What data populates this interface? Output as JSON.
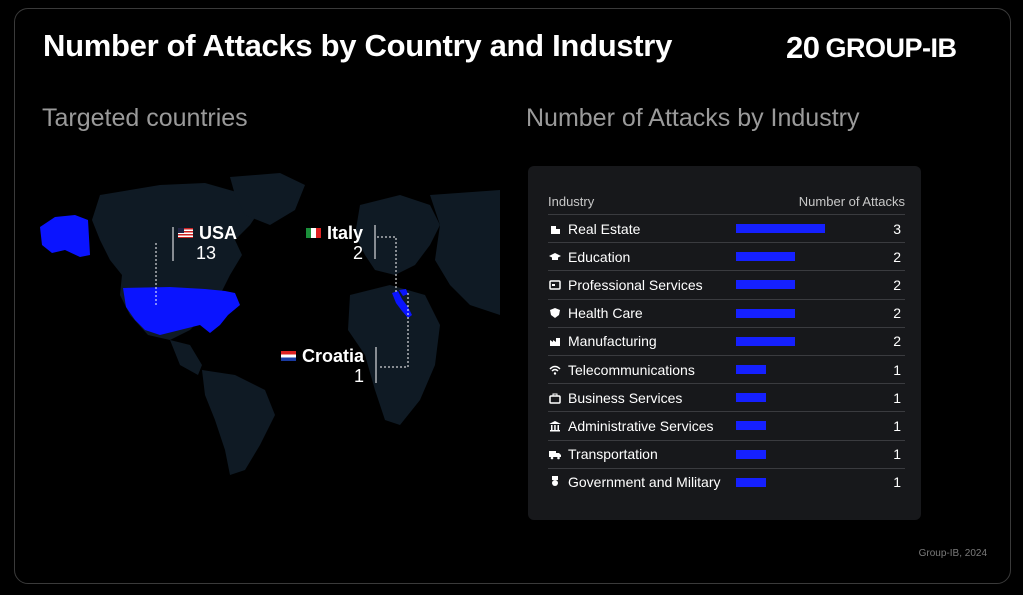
{
  "title": "Number of Attacks by Country and Industry",
  "logo": {
    "num": "20",
    "text": "GROUP-IB"
  },
  "countries": {
    "heading": "Targeted countries",
    "items": [
      {
        "name": "USA",
        "value": "13"
      },
      {
        "name": "Italy",
        "value": "2"
      },
      {
        "name": "Croatia",
        "value": "1"
      }
    ]
  },
  "industry_section": {
    "heading": "Number of Attacks by Industry"
  },
  "chart_data": {
    "type": "bar",
    "orientation": "horizontal",
    "column_headers": [
      "Industry",
      "Number of Attacks"
    ],
    "categories": [
      "Real Estate",
      "Education",
      "Professional Services",
      "Health Care",
      "Manufacturing",
      "Telecommunications",
      "Business Services",
      "Administrative Services",
      "Transportation",
      "Government and Military"
    ],
    "values": [
      3,
      2,
      2,
      2,
      2,
      1,
      1,
      1,
      1,
      1
    ],
    "icons": [
      "building-icon",
      "graduation-cap-icon",
      "id-card-icon",
      "shield-icon",
      "factory-icon",
      "wifi-icon",
      "briefcase-icon",
      "bank-icon",
      "truck-icon",
      "medal-icon"
    ],
    "bar_color": "#1520ff",
    "xlim": [
      0,
      3
    ]
  },
  "source": "Group-IB, 2024",
  "colors": {
    "accent": "#1520ff",
    "highlight_country": "#0a14ff",
    "map_land": "#0f1a24"
  }
}
